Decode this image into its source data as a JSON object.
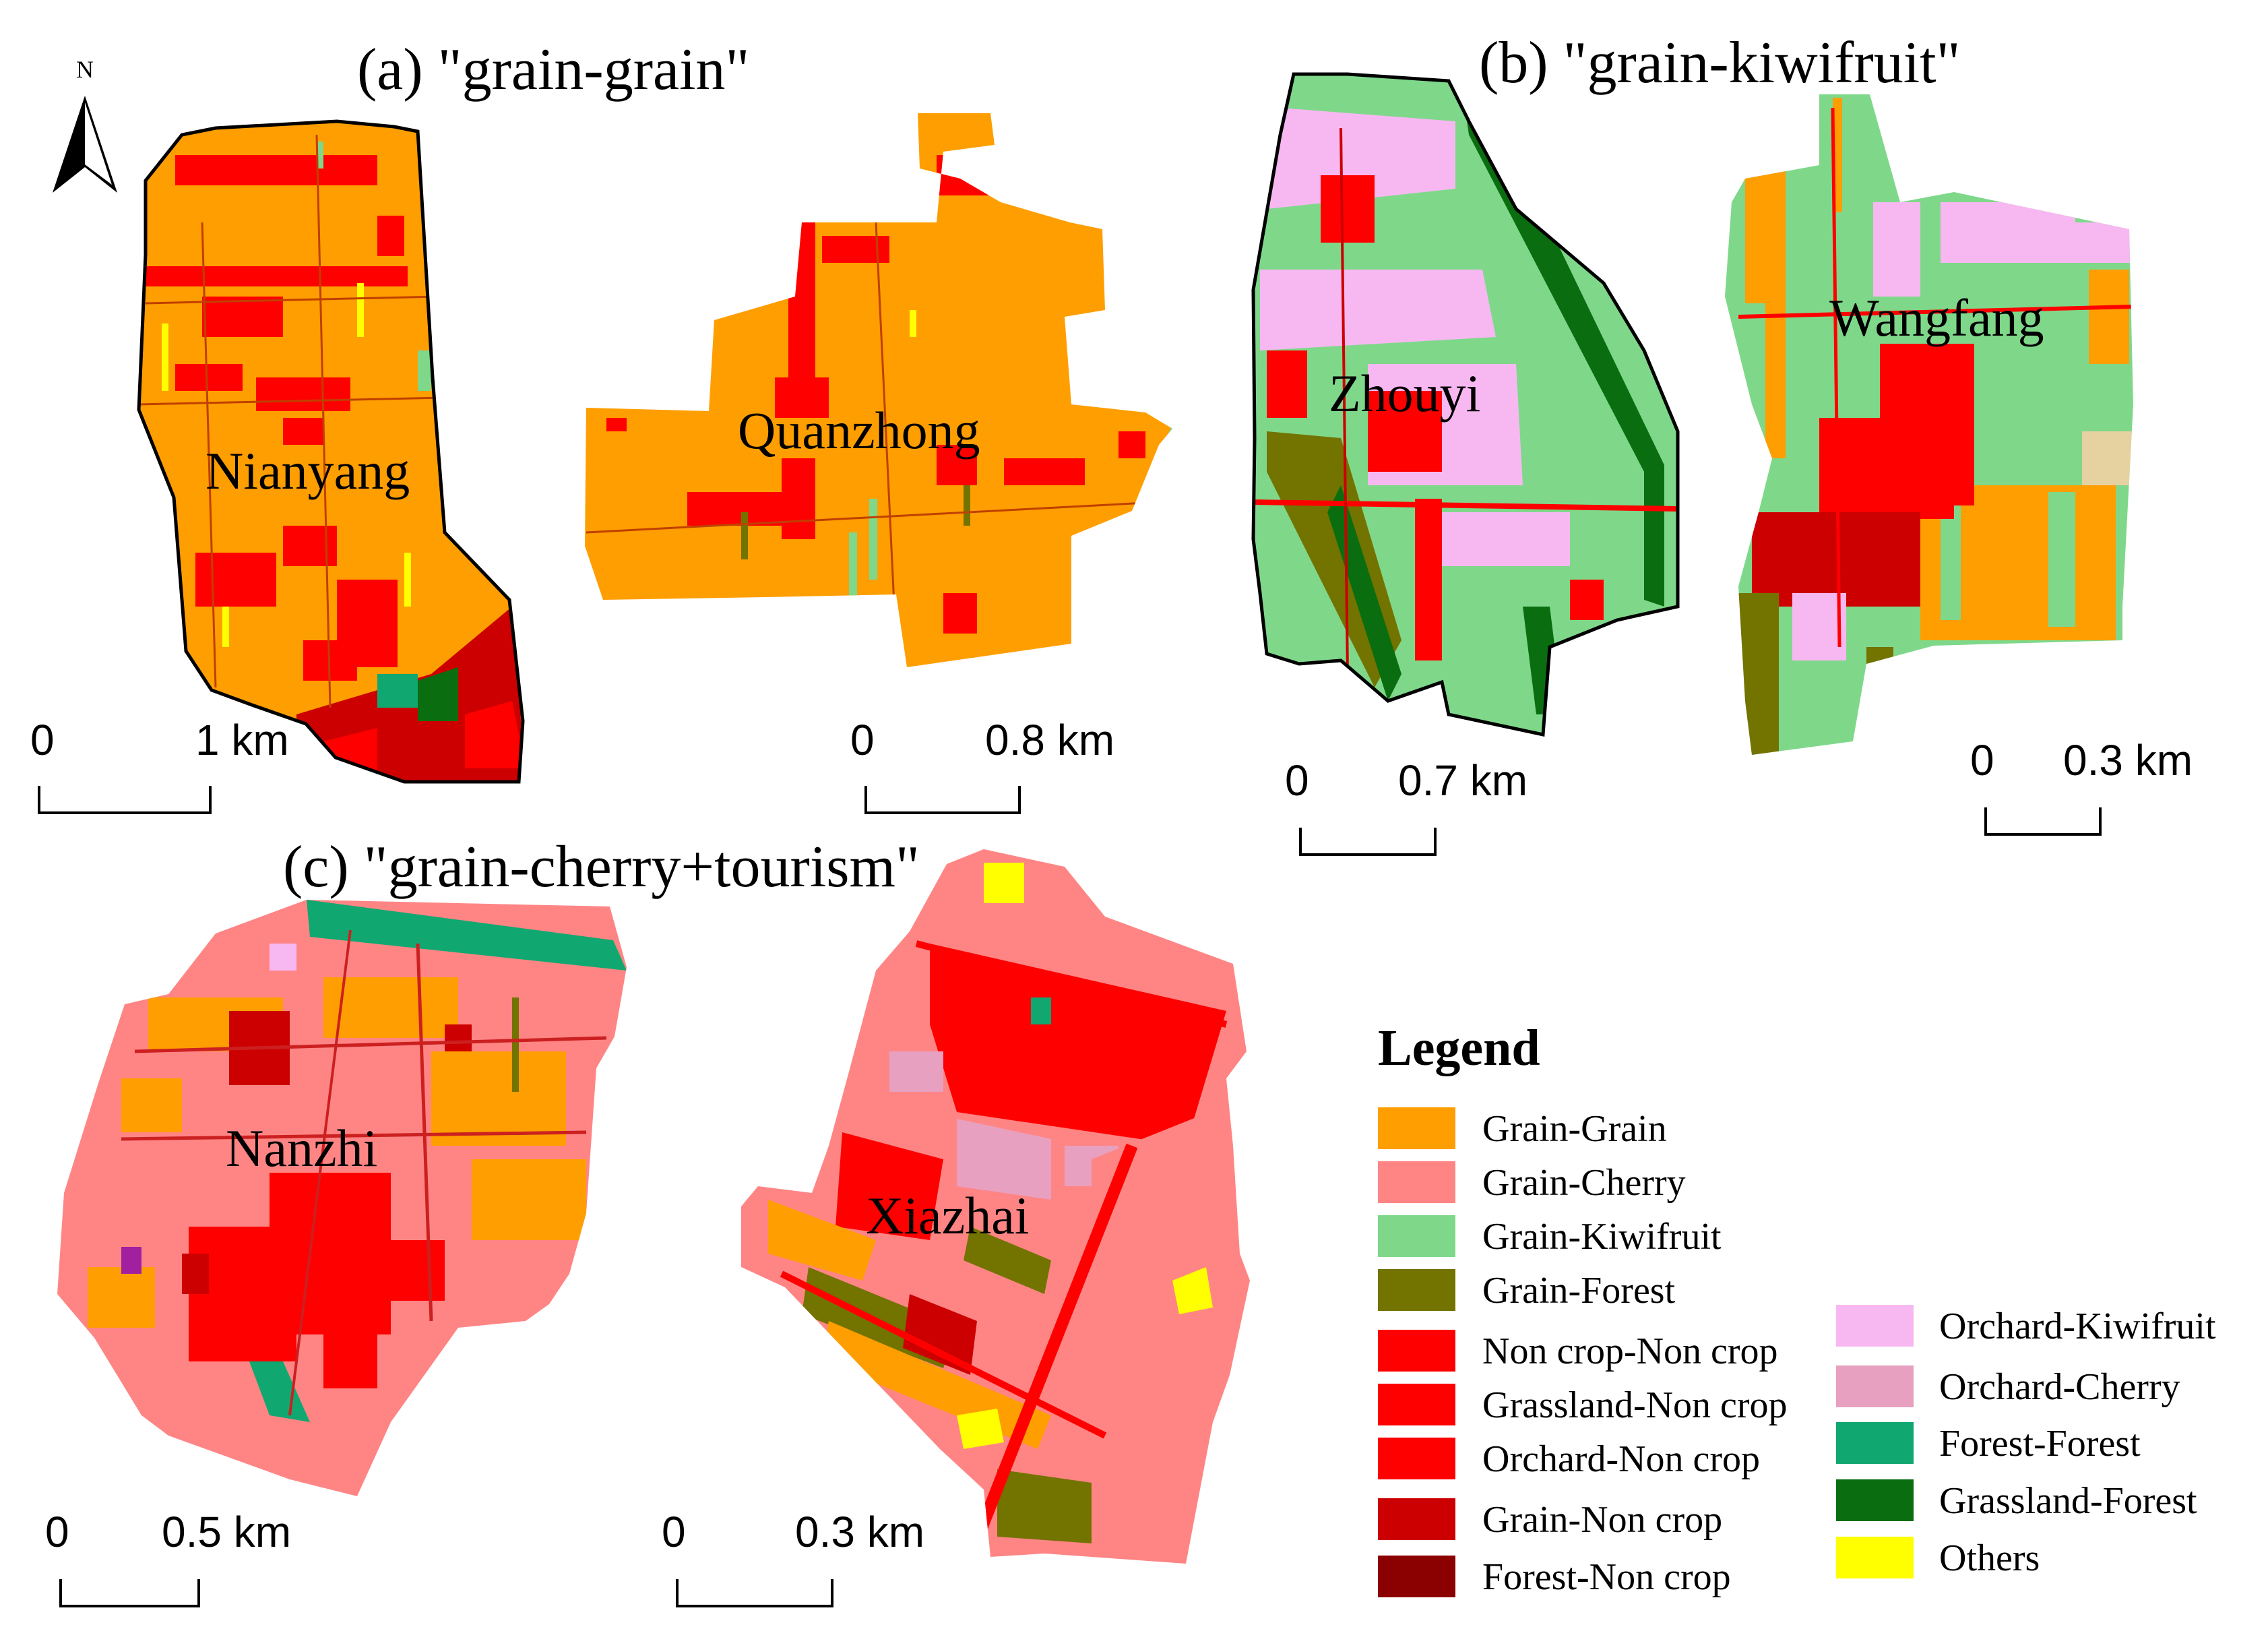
{
  "colors": {
    "grain_grain": "#FF9E00",
    "grain_cherry": "#FF8585",
    "grain_kiwifruit": "#7FD88A",
    "grain_forest": "#737300",
    "non_crop": "#FF0000",
    "grain_non_crop": "#CC0000",
    "forest_non_crop": "#8B0000",
    "orchard_kiwifruit": "#F7B8F2",
    "orchard_cherry": "#E8A0C0",
    "forest_forest": "#10A870",
    "grassland_forest": "#0A6E10",
    "others": "#FFFF00",
    "outline": "#000000"
  },
  "north_arrow": {
    "label": "N",
    "icon": "north-arrow-icon"
  },
  "panels": [
    {
      "id": "a",
      "title": "(a) \"grain-grain\""
    },
    {
      "id": "b",
      "title": "(b) \"grain-kiwifruit\""
    },
    {
      "id": "c",
      "title": "(c) \"grain-cherry+tourism\""
    }
  ],
  "places": [
    "Nianyang",
    "Quanzhong",
    "Zhouyi",
    "Wangfang",
    "Nanzhi",
    "Xiazhai"
  ],
  "scale_bars": [
    {
      "zero": "0",
      "dist": "1 km"
    },
    {
      "zero": "0",
      "dist": "0.8 km"
    },
    {
      "zero": "0",
      "dist": "0.7 km"
    },
    {
      "zero": "0",
      "dist": "0.3 km"
    },
    {
      "zero": "0",
      "dist": "0.5 km"
    },
    {
      "zero": "0",
      "dist": "0.3 km"
    }
  ],
  "legend": {
    "title": "Legend",
    "items": [
      {
        "label": "Grain-Grain",
        "color": "#FF9E00"
      },
      {
        "label": "Grain-Cherry",
        "color": "#FF8585"
      },
      {
        "label": "Grain-Kiwifruit",
        "color": "#7FD88A"
      },
      {
        "label": "Grain-Forest",
        "color": "#737300"
      },
      {
        "label": "Non crop-Non crop",
        "color": "#FF0000"
      },
      {
        "label": "Grassland-Non crop",
        "color": "#FF0000"
      },
      {
        "label": "Orchard-Non crop",
        "color": "#FF0000"
      },
      {
        "label": "Grain-Non crop",
        "color": "#CC0000"
      },
      {
        "label": "Forest-Non crop",
        "color": "#8B0000"
      },
      {
        "label": "Orchard-Kiwifruit",
        "color": "#F7B8F2"
      },
      {
        "label": "Orchard-Cherry",
        "color": "#E8A0C0"
      },
      {
        "label": "Forest-Forest",
        "color": "#10A870"
      },
      {
        "label": "Grassland-Forest",
        "color": "#0A6E10"
      },
      {
        "label": "Others",
        "color": "#FFFF00"
      }
    ]
  }
}
